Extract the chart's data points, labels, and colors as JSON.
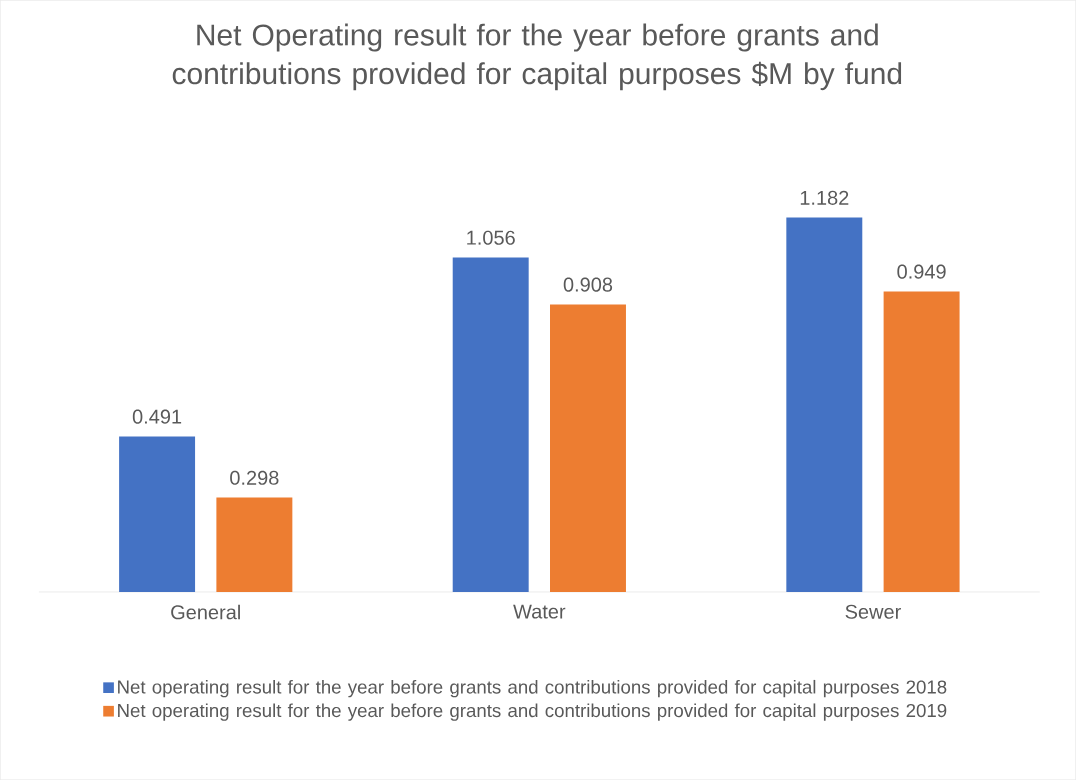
{
  "chart_data": {
    "type": "bar",
    "title": "Net Operating result for the year before grants and contributions provided for capital purposes $M by fund",
    "categories": [
      "General",
      "Water",
      "Sewer"
    ],
    "series": [
      {
        "name": "Net operating result for the year before grants and contributions provided for capital purposes 2018",
        "color": "#4472c4",
        "values": [
          0.491,
          1.056,
          1.182
        ]
      },
      {
        "name": "Net operating result for the year before grants and contributions provided for capital purposes 2019",
        "color": "#ed7d31",
        "values": [
          0.298,
          0.908,
          0.949
        ]
      }
    ],
    "data_labels": true,
    "legend": "bottom"
  }
}
